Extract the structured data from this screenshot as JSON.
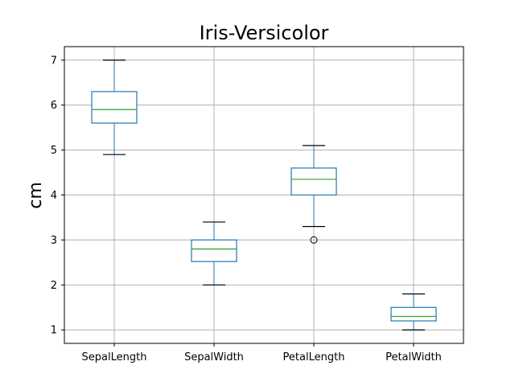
{
  "chart_data": {
    "type": "box",
    "title": "Iris-Versicolor",
    "xlabel": "",
    "ylabel": "cm",
    "ylim": [
      0.7,
      7.3
    ],
    "yticks": [
      1,
      2,
      3,
      4,
      5,
      6,
      7
    ],
    "grid": true,
    "colors": {
      "box": "#1f77b4",
      "median": "#2ca02c",
      "whisker_cap": "#000000",
      "grid": "#b0b0b0"
    },
    "categories": [
      "SepalLength",
      "SepalWidth",
      "PetalLength",
      "PetalWidth"
    ],
    "boxes": [
      {
        "label": "SepalLength",
        "whisker_low": 4.9,
        "q1": 5.6,
        "median": 5.9,
        "q3": 6.3,
        "whisker_high": 7.0,
        "outliers": []
      },
      {
        "label": "SepalWidth",
        "whisker_low": 2.0,
        "q1": 2.52,
        "median": 2.8,
        "q3": 3.0,
        "whisker_high": 3.4,
        "outliers": []
      },
      {
        "label": "PetalLength",
        "whisker_low": 3.3,
        "q1": 4.0,
        "median": 4.35,
        "q3": 4.6,
        "whisker_high": 5.1,
        "outliers": [
          3.0
        ]
      },
      {
        "label": "PetalWidth",
        "whisker_low": 1.0,
        "q1": 1.2,
        "median": 1.3,
        "q3": 1.5,
        "whisker_high": 1.8,
        "outliers": []
      }
    ]
  }
}
